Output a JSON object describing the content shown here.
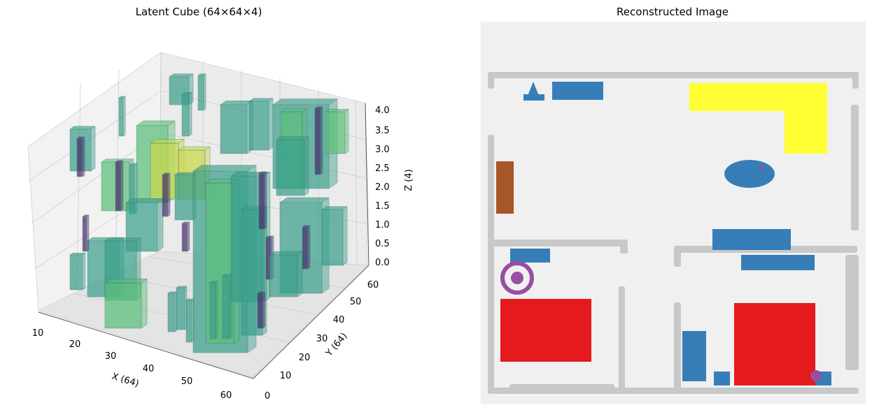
{
  "chart_data": [
    {
      "type": "3d-voxel",
      "title": "Latent Cube (64×64×4)",
      "xlabel": "X (64)",
      "ylabel": "Y (64)",
      "zlabel": "Z (4)",
      "x_ticks": [
        "10",
        "20",
        "30",
        "40",
        "50",
        "60"
      ],
      "y_ticks": [
        "0",
        "10",
        "20",
        "30",
        "40",
        "50",
        "60"
      ],
      "z_ticks": [
        "0.0",
        "0.5",
        "1.0",
        "1.5",
        "2.0",
        "2.5",
        "3.0",
        "3.5",
        "4.0"
      ],
      "xlim": [
        10,
        64
      ],
      "ylim": [
        0,
        64
      ],
      "zlim": [
        0,
        4
      ],
      "grid": true,
      "colors": {
        "teal": "#3aa08c",
        "green": "#5cc07a",
        "yellow": "#c9d94a",
        "purple": "#4b2a6e"
      }
    },
    {
      "type": "image",
      "title": "Reconstructed Image",
      "colors": {
        "background": "#f0f0f0",
        "wall": "#c8c8c8",
        "blue": "#377eb8",
        "red": "#e41a1c",
        "yellow": "#ffff33",
        "brown": "#a65628",
        "purple": "#984ea3"
      }
    }
  ]
}
